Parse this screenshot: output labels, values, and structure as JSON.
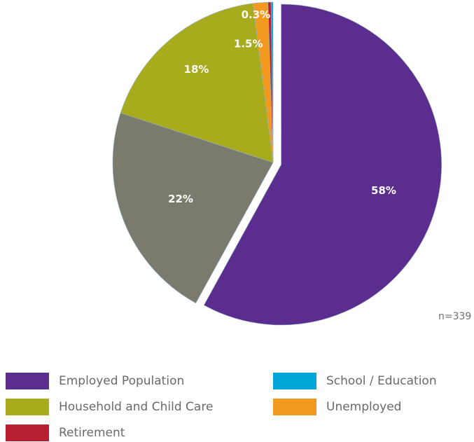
{
  "chart_data": {
    "type": "pie",
    "slices": [
      {
        "label": "Employed Population",
        "value": 58,
        "display": "58%",
        "color": "#5b2d8e"
      },
      {
        "label": "22%",
        "value": 22,
        "display": "22%",
        "color": "#7a7a6d"
      },
      {
        "label": "Household and Child Care",
        "value": 18,
        "display": "18%",
        "color": "#a8ab1b"
      },
      {
        "label": "Unemployed",
        "value": 1.5,
        "display": "1.5%",
        "color": "#f39a1e"
      },
      {
        "label": "Retirement",
        "value": 0.3,
        "display": "0.3%",
        "color": "#b71f33"
      },
      {
        "label": "School / Education",
        "value": 0.2,
        "display": "",
        "color": "#00a6d6"
      }
    ],
    "exploded_slice": "Employed Population",
    "note": "n=339",
    "legend": [
      {
        "label": "Employed Population",
        "color": "#5b2d8e"
      },
      {
        "label": "School / Education",
        "color": "#00a6d6"
      },
      {
        "label": "Household and Child Care",
        "color": "#a8ab1b"
      },
      {
        "label": "Unemployed",
        "color": "#f39a1e"
      },
      {
        "label": "Retirement",
        "color": "#b71f33"
      }
    ],
    "legend_placement": "bottom"
  }
}
